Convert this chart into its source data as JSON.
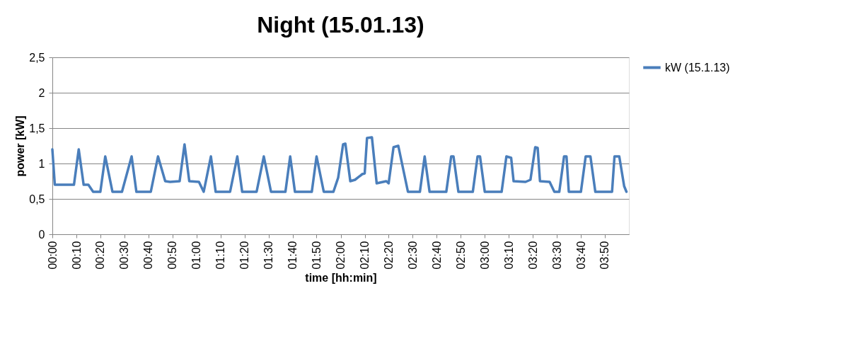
{
  "chart_data": {
    "type": "line",
    "title": "Night (15.01.13)",
    "xlabel": "time [hh:min]",
    "ylabel": "power [kW]",
    "xlim": [
      0,
      4
    ],
    "xticks": [
      {
        "value": 0,
        "label": "00:00"
      },
      {
        "value": 0.167,
        "label": "00:10"
      },
      {
        "value": 0.333,
        "label": "00:20"
      },
      {
        "value": 0.5,
        "label": "00:30"
      },
      {
        "value": 0.667,
        "label": "00:40"
      },
      {
        "value": 0.833,
        "label": "00:50"
      },
      {
        "value": 1,
        "label": "01:00"
      },
      {
        "value": 1.167,
        "label": "01:10"
      },
      {
        "value": 1.333,
        "label": "01:20"
      },
      {
        "value": 1.5,
        "label": "01:30"
      },
      {
        "value": 1.667,
        "label": "01:40"
      },
      {
        "value": 1.833,
        "label": "01:50"
      },
      {
        "value": 2,
        "label": "02:00"
      },
      {
        "value": 2.167,
        "label": "02:10"
      },
      {
        "value": 2.333,
        "label": "02:20"
      },
      {
        "value": 2.5,
        "label": "02:30"
      },
      {
        "value": 2.667,
        "label": "02:40"
      },
      {
        "value": 2.833,
        "label": "02:50"
      },
      {
        "value": 3,
        "label": "03:00"
      },
      {
        "value": 3.167,
        "label": "03:10"
      },
      {
        "value": 3.333,
        "label": "03:20"
      },
      {
        "value": 3.5,
        "label": "03:30"
      },
      {
        "value": 3.667,
        "label": "03:40"
      },
      {
        "value": 3.833,
        "label": "03:50"
      }
    ],
    "ylim": [
      0,
      2.5
    ],
    "yticks": [
      0,
      {
        "value": 0.5,
        "label": "0,5"
      },
      1,
      {
        "value": 1.5,
        "label": "1,5"
      },
      2,
      {
        "value": 2.5,
        "label": "2,5"
      }
    ],
    "grid": "y",
    "legend": "right",
    "marker": "none",
    "line_style": "solid",
    "x": [
      0,
      0.017,
      0.15,
      0.183,
      0.217,
      0.25,
      0.283,
      0.333,
      0.367,
      0.417,
      0.483,
      0.55,
      0.583,
      0.683,
      0.733,
      0.783,
      0.817,
      0.883,
      0.917,
      0.95,
      1.017,
      1.05,
      1.1,
      1.133,
      1.233,
      1.283,
      1.317,
      1.417,
      1.467,
      1.517,
      1.617,
      1.65,
      1.683,
      1.8,
      1.833,
      1.883,
      1.95,
      1.983,
      2.017,
      2.033,
      2.067,
      2.1,
      2.15,
      2.167,
      2.183,
      2.217,
      2.25,
      2.317,
      2.333,
      2.367,
      2.4,
      2.467,
      2.55,
      2.583,
      2.617,
      2.733,
      2.767,
      2.783,
      2.817,
      2.917,
      2.95,
      2.967,
      3,
      3.117,
      3.15,
      3.183,
      3.2,
      3.283,
      3.317,
      3.35,
      3.367,
      3.383,
      3.45,
      3.483,
      3.517,
      3.55,
      3.567,
      3.583,
      3.667,
      3.7,
      3.733,
      3.767,
      3.883,
      3.9,
      3.933,
      3.967,
      3.983
    ],
    "series": [
      {
        "name": "kW (15.1.13)",
        "color": "#4a7ebb",
        "values": [
          1.2,
          0.7,
          0.7,
          1.2,
          0.7,
          0.7,
          0.6,
          0.6,
          1.1,
          0.6,
          0.6,
          1.1,
          0.6,
          0.6,
          1.1,
          0.75,
          0.74,
          0.75,
          1.27,
          0.75,
          0.74,
          0.6,
          1.1,
          0.6,
          0.6,
          1.1,
          0.6,
          0.6,
          1.1,
          0.6,
          0.6,
          1.1,
          0.6,
          0.6,
          1.1,
          0.6,
          0.6,
          0.8,
          1.27,
          1.28,
          0.75,
          0.77,
          0.85,
          0.86,
          1.36,
          1.37,
          0.72,
          0.75,
          0.72,
          1.23,
          1.25,
          0.6,
          0.6,
          1.1,
          0.6,
          0.6,
          1.1,
          1.1,
          0.6,
          0.6,
          1.1,
          1.1,
          0.6,
          0.6,
          1.1,
          1.08,
          0.75,
          0.74,
          0.77,
          1.23,
          1.22,
          0.75,
          0.74,
          0.6,
          0.6,
          1.1,
          1.1,
          0.6,
          0.6,
          1.1,
          1.1,
          0.6,
          0.6,
          1.1,
          1.1,
          0.68,
          0.6
        ]
      }
    ]
  }
}
